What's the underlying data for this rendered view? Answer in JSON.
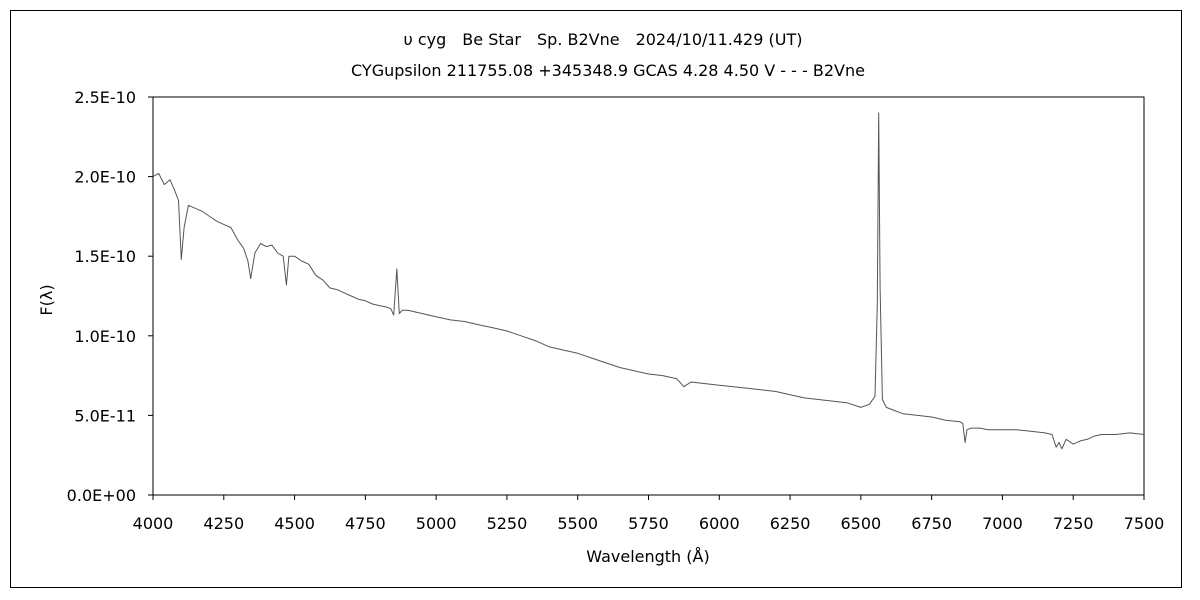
{
  "chart_data": {
    "type": "line",
    "title": "υ cyg　Be Star　Sp. B2Vne　2024/10/11.429 (UT)",
    "subtitle": "CYGupsilon 211755.08 +345348.9 GCAS 4.28 4.50 V - - - B2Vne",
    "xlabel": "Wavelength (Å)",
    "ylabel": "F(λ)",
    "xlim": [
      4000,
      7500
    ],
    "ylim": [
      0,
      2.5e-10
    ],
    "x_ticks": [
      "4000",
      "4250",
      "4500",
      "4750",
      "5000",
      "5250",
      "5500",
      "5750",
      "6000",
      "6250",
      "6500",
      "6750",
      "7000",
      "7250",
      "7500"
    ],
    "y_ticks": [
      "0.0E+00",
      "5.0E-11",
      "1.0E-10",
      "1.5E-10",
      "2.0E-10",
      "2.5E-10"
    ],
    "grid": false,
    "line_color": "#555555",
    "series": [
      {
        "name": "",
        "x": [
          4000,
          4020,
          4040,
          4060,
          4075,
          4090,
          4100,
          4110,
          4125,
          4150,
          4175,
          4200,
          4225,
          4250,
          4275,
          4300,
          4320,
          4335,
          4345,
          4360,
          4380,
          4400,
          4420,
          4440,
          4460,
          4471,
          4480,
          4500,
          4525,
          4550,
          4575,
          4600,
          4625,
          4650,
          4675,
          4700,
          4725,
          4750,
          4775,
          4800,
          4825,
          4840,
          4850,
          4861,
          4870,
          4880,
          4900,
          4925,
          4950,
          5000,
          5050,
          5100,
          5150,
          5200,
          5250,
          5300,
          5350,
          5400,
          5450,
          5500,
          5550,
          5600,
          5650,
          5700,
          5750,
          5800,
          5850,
          5875,
          5900,
          5950,
          6000,
          6050,
          6100,
          6150,
          6200,
          6250,
          6300,
          6350,
          6400,
          6450,
          6500,
          6530,
          6550,
          6558,
          6563,
          6568,
          6576,
          6590,
          6620,
          6650,
          6700,
          6750,
          6800,
          6850,
          6860,
          6868,
          6875,
          6890,
          6920,
          6950,
          7000,
          7050,
          7100,
          7150,
          7175,
          7190,
          7200,
          7210,
          7225,
          7250,
          7275,
          7300,
          7325,
          7350,
          7400,
          7450,
          7500
        ],
        "y": [
          2e-10,
          2.02e-10,
          1.95e-10,
          1.98e-10,
          1.92e-10,
          1.85e-10,
          1.48e-10,
          1.68e-10,
          1.82e-10,
          1.8e-10,
          1.78e-10,
          1.75e-10,
          1.72e-10,
          1.7e-10,
          1.68e-10,
          1.6e-10,
          1.55e-10,
          1.47e-10,
          1.36e-10,
          1.52e-10,
          1.58e-10,
          1.56e-10,
          1.57e-10,
          1.52e-10,
          1.5e-10,
          1.32e-10,
          1.5e-10,
          1.5e-10,
          1.47e-10,
          1.45e-10,
          1.38e-10,
          1.35e-10,
          1.3e-10,
          1.29e-10,
          1.27e-10,
          1.25e-10,
          1.23e-10,
          1.22e-10,
          1.2e-10,
          1.19e-10,
          1.18e-10,
          1.17e-10,
          1.13e-10,
          1.42e-10,
          1.14e-10,
          1.16e-10,
          1.16e-10,
          1.15e-10,
          1.14e-10,
          1.12e-10,
          1.1e-10,
          1.09e-10,
          1.07e-10,
          1.05e-10,
          1.03e-10,
          1e-10,
          9.7e-11,
          9.3e-11,
          9.1e-11,
          8.9e-11,
          8.6e-11,
          8.3e-11,
          8e-11,
          7.8e-11,
          7.6e-11,
          7.5e-11,
          7.3e-11,
          6.8e-11,
          7.1e-11,
          7e-11,
          6.9e-11,
          6.8e-11,
          6.7e-11,
          6.6e-11,
          6.5e-11,
          6.3e-11,
          6.1e-11,
          6e-11,
          5.9e-11,
          5.8e-11,
          5.5e-11,
          5.7e-11,
          6.2e-11,
          1.2e-10,
          2.4e-10,
          1.3e-10,
          6e-11,
          5.5e-11,
          5.3e-11,
          5.1e-11,
          5e-11,
          4.9e-11,
          4.7e-11,
          4.6e-11,
          4.5e-11,
          3.3e-11,
          4.1e-11,
          4.2e-11,
          4.2e-11,
          4.1e-11,
          4.1e-11,
          4.1e-11,
          4e-11,
          3.9e-11,
          3.8e-11,
          3e-11,
          3.3e-11,
          2.9e-11,
          3.5e-11,
          3.2e-11,
          3.4e-11,
          3.5e-11,
          3.7e-11,
          3.8e-11,
          3.8e-11,
          3.9e-11,
          3.8e-11
        ]
      }
    ]
  }
}
